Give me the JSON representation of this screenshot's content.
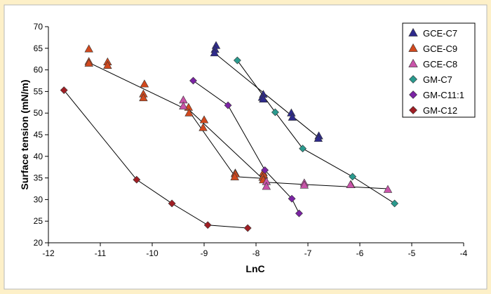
{
  "chart_data": {
    "type": "scatter",
    "title": "",
    "xlabel": "LnC",
    "ylabel": "Surface tension (mN/m)",
    "xlim": [
      -12,
      -4
    ],
    "ylim": [
      20,
      70
    ],
    "xticks": [
      -12,
      -11,
      -10,
      -9,
      -8,
      -7,
      -6,
      -5,
      -4
    ],
    "yticks": [
      20,
      25,
      30,
      35,
      40,
      45,
      50,
      55,
      60,
      65,
      70
    ],
    "xtick_labels": [
      "-12",
      "-11",
      "-10",
      "-9",
      "-8",
      "-7",
      "-6",
      "-5",
      "-4"
    ],
    "ytick_labels": [
      "20",
      "25",
      "30",
      "35",
      "40",
      "45",
      "50",
      "55",
      "60",
      "65",
      "70"
    ],
    "grid": false,
    "legend_position": "top-right",
    "series": [
      {
        "name": "GCE-C7",
        "marker": "triangle",
        "color": "#2e2a8c",
        "points": [
          [
            -8.77,
            65.6
          ],
          [
            -8.79,
            64.7
          ],
          [
            -8.8,
            63.9
          ],
          [
            -7.86,
            54.3
          ],
          [
            -7.88,
            53.6
          ],
          [
            -7.86,
            53.2
          ],
          [
            -7.32,
            50.0
          ],
          [
            -7.3,
            49.0
          ],
          [
            -6.79,
            44.7
          ],
          [
            -6.8,
            44.1
          ]
        ],
        "trendline": [
          [
            -8.85,
            64.4
          ],
          [
            -6.8,
            44.4
          ]
        ]
      },
      {
        "name": "GCE-C9",
        "marker": "triangle",
        "color": "#d2491e",
        "points": [
          [
            -11.22,
            64.8
          ],
          [
            -11.22,
            61.9
          ],
          [
            -11.22,
            61.5
          ],
          [
            -10.86,
            61.8
          ],
          [
            -10.86,
            61.0
          ],
          [
            -10.15,
            56.7
          ],
          [
            -10.17,
            54.4
          ],
          [
            -10.17,
            53.5
          ],
          [
            -9.3,
            51.3
          ],
          [
            -9.29,
            50.0
          ],
          [
            -9.0,
            48.4
          ],
          [
            -9.02,
            46.6
          ],
          [
            -8.4,
            36.1
          ],
          [
            -8.4,
            35.9
          ],
          [
            -8.41,
            35.2
          ],
          [
            -7.86,
            36.2
          ],
          [
            -7.85,
            35.6
          ],
          [
            -7.87,
            35.1
          ],
          [
            -7.86,
            34.5
          ],
          [
            -6.17,
            33.4
          ]
        ],
        "trendline": [
          [
            -11.22,
            61.7
          ],
          [
            -9.3,
            50.6
          ],
          [
            -8.4,
            35.3
          ],
          [
            -7.86,
            34.9
          ]
        ]
      },
      {
        "name": "GCE-C8",
        "marker": "triangle",
        "color": "#c954a9",
        "points": [
          [
            -9.4,
            53.0
          ],
          [
            -9.4,
            51.6
          ],
          [
            -7.8,
            34.1
          ],
          [
            -7.8,
            33.0
          ],
          [
            -7.07,
            33.8
          ],
          [
            -7.07,
            33.3
          ],
          [
            -6.18,
            33.4
          ],
          [
            -5.46,
            32.3
          ]
        ],
        "trendline": [
          [
            -9.4,
            52.0
          ],
          [
            -7.8,
            34.0
          ],
          [
            -7.07,
            33.5
          ],
          [
            -5.46,
            32.5
          ]
        ]
      },
      {
        "name": "GM-C7",
        "marker": "diamond",
        "color": "#2a9a8e",
        "points": [
          [
            -8.36,
            62.2
          ],
          [
            -7.63,
            50.2
          ],
          [
            -7.1,
            41.8
          ],
          [
            -6.14,
            35.3
          ],
          [
            -5.33,
            29.1
          ]
        ],
        "trendline": [
          [
            -8.36,
            62.2
          ],
          [
            -7.63,
            50.2
          ],
          [
            -7.1,
            41.8
          ],
          [
            -6.14,
            35.3
          ],
          [
            -5.33,
            29.1
          ]
        ]
      },
      {
        "name": "GM-C11:1",
        "marker": "diamond",
        "color": "#7b23a4",
        "points": [
          [
            -9.21,
            57.5
          ],
          [
            -8.54,
            51.8
          ],
          [
            -7.83,
            36.8
          ],
          [
            -7.31,
            30.2
          ],
          [
            -7.17,
            26.8
          ]
        ],
        "trendline": [
          [
            -9.21,
            57.5
          ],
          [
            -8.54,
            51.8
          ],
          [
            -7.83,
            36.8
          ],
          [
            -7.31,
            30.2
          ],
          [
            -7.17,
            26.8
          ]
        ]
      },
      {
        "name": "GM-C12",
        "marker": "diamond",
        "color": "#a01e24",
        "points": [
          [
            -11.7,
            55.3
          ],
          [
            -10.3,
            34.6
          ],
          [
            -9.62,
            29.1
          ],
          [
            -8.93,
            24.1
          ],
          [
            -8.16,
            23.4
          ]
        ],
        "trendline": [
          [
            -11.7,
            55.3
          ],
          [
            -10.3,
            34.6
          ],
          [
            -9.62,
            29.1
          ],
          [
            -8.93,
            24.1
          ],
          [
            -8.16,
            23.4
          ]
        ]
      }
    ]
  }
}
